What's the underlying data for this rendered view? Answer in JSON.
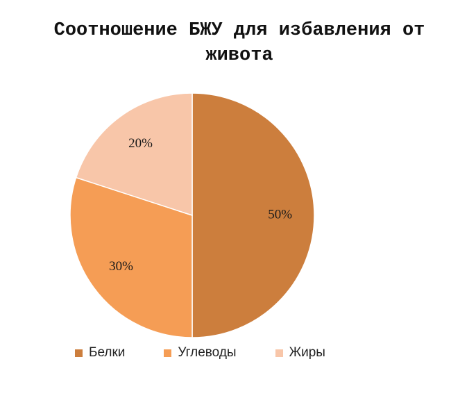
{
  "chart_data": {
    "type": "pie",
    "title": "Соотношение БЖУ для избавления от живота",
    "slices": [
      {
        "label": "Белки",
        "value": 50,
        "value_label": "50%",
        "color": "#CC7E3D"
      },
      {
        "label": "Углеводы",
        "value": 30,
        "value_label": "30%",
        "color": "#F59D55"
      },
      {
        "label": "Жиры",
        "value": 20,
        "value_label": "20%",
        "color": "#F8C6A9"
      }
    ],
    "legend_position": "bottom"
  }
}
